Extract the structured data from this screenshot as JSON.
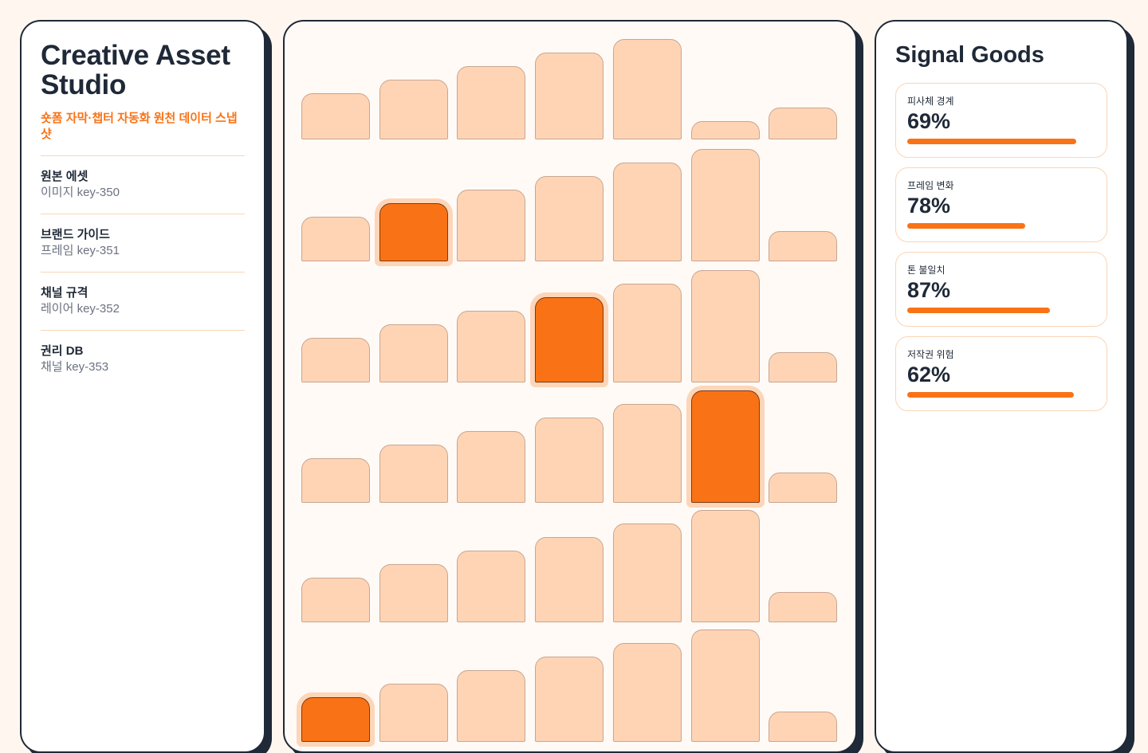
{
  "sidebar": {
    "title": "Creative Asset Studio",
    "subtitle": "숏폼 자막·챕터 자동화 원천 데이터 스냅샷",
    "items": [
      {
        "name": "원본 에셋",
        "detail": "이미지 key-350"
      },
      {
        "name": "브랜드 가이드",
        "detail": "프레임 key-351"
      },
      {
        "name": "채널 규격",
        "detail": "레이어 key-352"
      },
      {
        "name": "권리 DB",
        "detail": "채널 key-353"
      }
    ]
  },
  "signals": {
    "title": "Signal Goods",
    "cards": [
      {
        "label": "피사체 경계",
        "value": "69%"
      },
      {
        "label": "프레임 변화",
        "value": "78%"
      },
      {
        "label": "톤 불일치",
        "value": "87%"
      },
      {
        "label": "저작권 위험",
        "value": "62%"
      }
    ]
  }
}
